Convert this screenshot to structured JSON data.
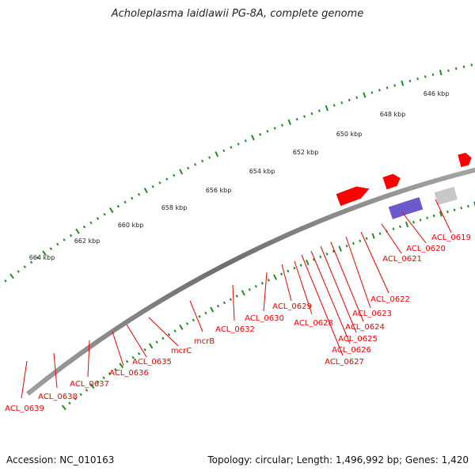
{
  "title": "Acholeplasma laidlawii PG-8A, complete genome",
  "footer": {
    "accession": "Accession: NC_010163",
    "summary": "Topology: circular; Length: 1,496,992 bp; Genes: 1,420"
  },
  "colors": {
    "backbone": "#8a8a8a",
    "gene_fwd": "#ff0000",
    "gene_rev_orange": "#ff8c00",
    "gene_teal": "#22ee99",
    "gene_khaki": "#c2b46a",
    "gene_gray": "#c8c8c8",
    "gene_purple": "#6a5acd",
    "ticks": "#228b22",
    "labels": "#ee0000"
  },
  "kbp_labels": [
    "646 kbp",
    "648 kbp",
    "650 kbp",
    "652 kbp",
    "654 kbp",
    "656 kbp",
    "658 kbp",
    "660 kbp",
    "662 kbp",
    "664 kbp"
  ],
  "gene_labels": [
    "ACL_0619",
    "ACL_0620",
    "ACL_0621",
    "ACL_0622",
    "ACL_0623",
    "ACL_0624",
    "ACL_0625",
    "ACL_0626",
    "ACL_0627",
    "ACL_0628",
    "ACL_0629",
    "ACL_0630",
    "ACL_0632",
    "mcrB",
    "mcrC",
    "ACL_0635",
    "ACL_0636",
    "ACL_0637",
    "ACL_0638",
    "ACL_0639"
  ]
}
